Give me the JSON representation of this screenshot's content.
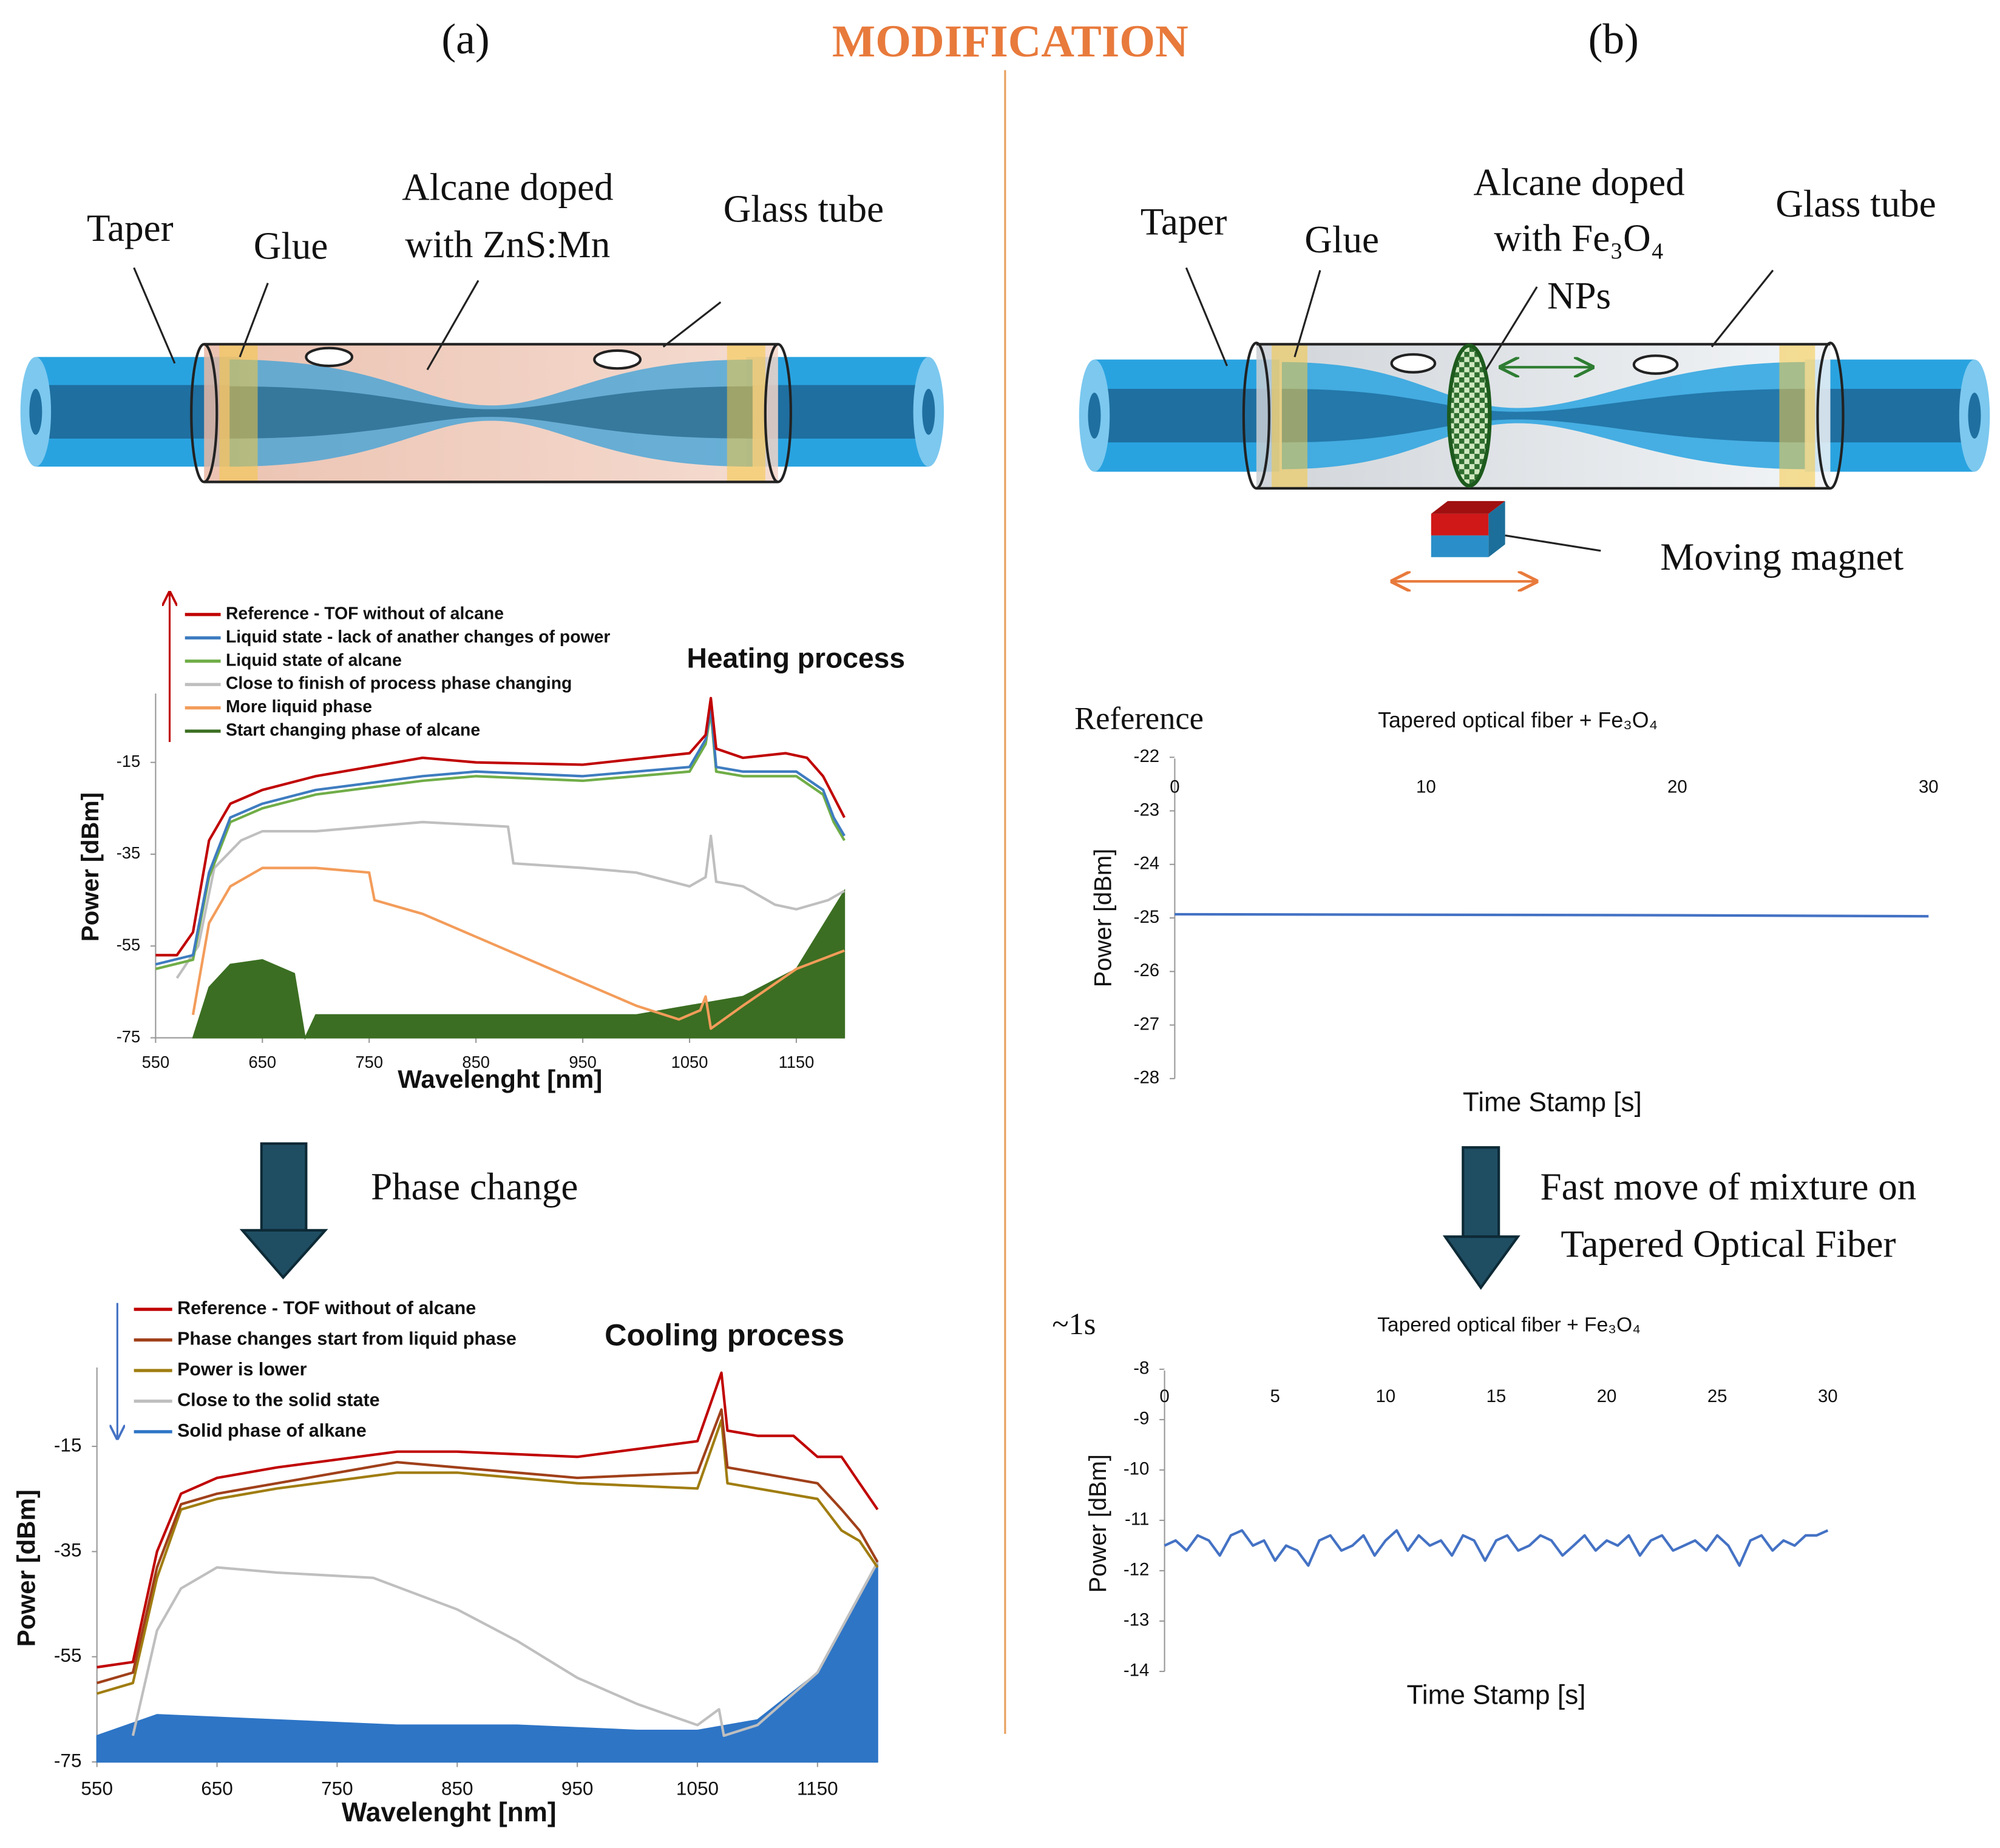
{
  "labels": {
    "panel_a": "(a)",
    "panel_b": "(b)",
    "header": "MODIFICATION",
    "left_diagram": {
      "taper": "Taper",
      "glue": "Glue",
      "alcane": [
        "Alcane doped",
        "with ZnS:Mn"
      ],
      "tube": "Glass tube"
    },
    "right_diagram": {
      "taper": "Taper",
      "glue": "Glue",
      "alcane": [
        "Alcane doped",
        "with Fe₃O₄",
        "NPs"
      ],
      "tube": "Glass tube",
      "magnet": "Moving magnet"
    },
    "phase_change": "Phase change",
    "fast_move": [
      "Fast move of mixture on",
      "Tapered Optical Fiber"
    ],
    "reference": "Reference",
    "one_second": "~1s"
  },
  "chart_data": [
    {
      "type": "line",
      "title": "Heating process",
      "x_label": "Wavelenght [nm]",
      "y_label": "Power [dBm]",
      "xlim": [
        550,
        1195
      ],
      "ylim": [
        -75,
        0
      ],
      "xticks": [
        550,
        650,
        750,
        850,
        950,
        1050,
        1150
      ],
      "yticks": [
        -15,
        -35,
        -55,
        -75
      ],
      "legend": "top-left",
      "series": [
        {
          "name": "Reference - TOF without of alcane",
          "color": "#c00000",
          "x": [
            550,
            570,
            585,
            600,
            620,
            650,
            700,
            800,
            850,
            950,
            1050,
            1065,
            1070,
            1075,
            1100,
            1140,
            1160,
            1175,
            1195
          ],
          "values": [
            -57,
            -57,
            -52,
            -32,
            -24,
            -21,
            -18,
            -14,
            -15,
            -15.5,
            -13,
            -9,
            -1,
            -12,
            -14,
            -13,
            -14,
            -18,
            -27
          ]
        },
        {
          "name": "Liquid state - lack of anather changes of power",
          "color": "#3e7cc0",
          "x": [
            550,
            585,
            600,
            620,
            650,
            700,
            800,
            850,
            950,
            1050,
            1065,
            1070,
            1075,
            1100,
            1150,
            1175,
            1185,
            1195
          ],
          "values": [
            -59,
            -57,
            -39,
            -27,
            -24,
            -21,
            -18,
            -17,
            -18,
            -16,
            -10,
            -3,
            -16,
            -17,
            -17,
            -21,
            -27,
            -31
          ]
        },
        {
          "name": "Liquid state of alcane",
          "color": "#70ad47",
          "x": [
            550,
            585,
            600,
            620,
            650,
            700,
            800,
            850,
            950,
            1050,
            1065,
            1070,
            1075,
            1100,
            1150,
            1175,
            1185,
            1195
          ],
          "values": [
            -60,
            -58,
            -40,
            -28,
            -25,
            -22,
            -19,
            -18,
            -19,
            -17,
            -11,
            -4,
            -17,
            -18,
            -18,
            -22,
            -28,
            -32
          ]
        },
        {
          "name": "Close to finish of process phase changing",
          "color": "#bfbfbf",
          "x": [
            570,
            590,
            605,
            630,
            650,
            700,
            800,
            880,
            885,
            950,
            1000,
            1050,
            1065,
            1070,
            1075,
            1100,
            1130,
            1150,
            1180,
            1195
          ],
          "values": [
            -62,
            -55,
            -38,
            -32,
            -30,
            -30,
            -28,
            -29,
            -37,
            -38,
            -39,
            -42,
            -40,
            -31,
            -41,
            -42,
            -46,
            -47,
            -45,
            -43
          ]
        },
        {
          "name": "More liquid phase",
          "color": "#f39c5a",
          "x": [
            585,
            600,
            620,
            650,
            700,
            750,
            755,
            800,
            850,
            900,
            950,
            1000,
            1040,
            1060,
            1065,
            1070,
            1100,
            1150,
            1195
          ],
          "values": [
            -70,
            -50,
            -42,
            -38,
            -38,
            -39,
            -45,
            -48,
            -53,
            -58,
            -63,
            -68,
            -71,
            -69,
            -66,
            -73,
            -68,
            -60,
            -56
          ]
        },
        {
          "name": "Start changing phase of alcane",
          "color": "#3b6e22",
          "style": "area",
          "x": [
            585,
            600,
            620,
            650,
            680,
            690,
            700,
            800,
            900,
            1000,
            1100,
            1150,
            1195
          ],
          "values": [
            -75,
            -64,
            -59,
            -58,
            -61,
            -75,
            -70,
            -70,
            -70,
            -70,
            -66,
            -60,
            -43
          ]
        }
      ]
    },
    {
      "type": "line",
      "title": "Cooling process",
      "x_label": "Wavelenght [nm]",
      "y_label": "Power [dBm]",
      "xlim": [
        550,
        1200
      ],
      "ylim": [
        -75,
        0
      ],
      "xticks": [
        550,
        650,
        750,
        850,
        950,
        1050,
        1150
      ],
      "yticks": [
        -15,
        -35,
        -55,
        -75
      ],
      "legend": "top-left",
      "series": [
        {
          "name": "Reference - TOF without of alcane",
          "color": "#c00000",
          "x": [
            550,
            580,
            600,
            620,
            650,
            700,
            800,
            850,
            950,
            1050,
            1070,
            1075,
            1100,
            1130,
            1150,
            1170,
            1185,
            1200
          ],
          "values": [
            -57,
            -56,
            -35,
            -24,
            -21,
            -19,
            -16,
            -16,
            -17,
            -14,
            -1,
            -12,
            -13,
            -13,
            -17,
            -17,
            -22,
            -27
          ]
        },
        {
          "name": "Phase changes start from liquid phase",
          "color": "#a0401a",
          "x": [
            550,
            580,
            600,
            620,
            650,
            700,
            800,
            850,
            950,
            1050,
            1070,
            1075,
            1100,
            1150,
            1170,
            1185,
            1200
          ],
          "values": [
            -60,
            -58,
            -38,
            -26,
            -24,
            -22,
            -18,
            -19,
            -21,
            -20,
            -8,
            -19,
            -20,
            -22,
            -27,
            -31,
            -37
          ]
        },
        {
          "name": "Power is lower",
          "color": "#a07d10",
          "x": [
            550,
            580,
            600,
            620,
            650,
            700,
            800,
            850,
            950,
            1050,
            1070,
            1075,
            1100,
            1150,
            1170,
            1185,
            1200
          ],
          "values": [
            -62,
            -60,
            -40,
            -27,
            -25,
            -23,
            -20,
            -20,
            -22,
            -23,
            -10,
            -22,
            -23,
            -25,
            -31,
            -33,
            -38
          ]
        },
        {
          "name": "Close to the solid state",
          "color": "#bfbfbf",
          "x": [
            580,
            600,
            620,
            650,
            700,
            780,
            850,
            900,
            950,
            1000,
            1050,
            1068,
            1072,
            1100,
            1150,
            1200
          ],
          "values": [
            -70,
            -50,
            -42,
            -38,
            -39,
            -40,
            -46,
            -52,
            -59,
            -64,
            -68,
            -65,
            -70,
            -68,
            -58,
            -37
          ]
        },
        {
          "name": "Solid phase of alkane",
          "color": "#2e75c6",
          "style": "area",
          "x": [
            550,
            600,
            700,
            800,
            900,
            1000,
            1050,
            1100,
            1150,
            1200
          ],
          "values": [
            -70,
            -66,
            -67,
            -68,
            -68,
            -69,
            -69,
            -67,
            -58,
            -37
          ]
        }
      ]
    },
    {
      "type": "line",
      "title": "Tapered optical fiber + Fe₃O₄",
      "x_label": "Time Stamp [s]",
      "y_label": "Power [dBm]",
      "xlim": [
        0,
        30
      ],
      "ylim": [
        -28,
        -22
      ],
      "xticks": [
        0,
        10,
        20,
        30
      ],
      "yticks": [
        -22,
        -23,
        -24,
        -25,
        -26,
        -27,
        -28
      ],
      "series": [
        {
          "color": "#4472c4",
          "x": [
            0,
            10,
            20,
            30
          ],
          "values": [
            -24.93,
            -24.94,
            -24.95,
            -24.97
          ]
        }
      ]
    },
    {
      "type": "line",
      "title": "Tapered optical fiber + Fe₃O₄",
      "x_label": "Time Stamp [s]",
      "y_label": "Power [dBm]",
      "xlim": [
        0,
        30
      ],
      "ylim": [
        -14,
        -8
      ],
      "xticks": [
        0,
        5,
        10,
        15,
        20,
        25,
        30
      ],
      "yticks": [
        -8,
        -9,
        -10,
        -11,
        -12,
        -13,
        -14
      ],
      "series": [
        {
          "color": "#4472c4",
          "x": [
            0,
            0.5,
            1,
            1.5,
            2,
            2.5,
            3,
            3.5,
            4,
            4.5,
            5,
            5.5,
            6,
            6.5,
            7,
            7.5,
            8,
            8.5,
            9,
            9.5,
            10,
            10.5,
            11,
            11.5,
            12,
            12.5,
            13,
            13.5,
            14,
            14.5,
            15,
            15.5,
            16,
            16.5,
            17,
            17.5,
            18,
            18.5,
            19,
            19.5,
            20,
            20.5,
            21,
            21.5,
            22,
            22.5,
            23,
            23.5,
            24,
            24.5,
            25,
            25.5,
            26,
            26.5,
            27,
            27.5,
            28,
            28.5,
            29,
            29.5,
            30
          ],
          "values": [
            -11.5,
            -11.4,
            -11.6,
            -11.3,
            -11.4,
            -11.7,
            -11.3,
            -11.2,
            -11.5,
            -11.4,
            -11.8,
            -11.5,
            -11.6,
            -11.9,
            -11.4,
            -11.3,
            -11.6,
            -11.5,
            -11.3,
            -11.7,
            -11.4,
            -11.2,
            -11.6,
            -11.3,
            -11.5,
            -11.4,
            -11.7,
            -11.3,
            -11.4,
            -11.8,
            -11.4,
            -11.3,
            -11.6,
            -11.5,
            -11.3,
            -11.4,
            -11.7,
            -11.5,
            -11.3,
            -11.6,
            -11.4,
            -11.5,
            -11.3,
            -11.7,
            -11.4,
            -11.3,
            -11.6,
            -11.5,
            -11.4,
            -11.6,
            -11.3,
            -11.5,
            -11.9,
            -11.4,
            -11.3,
            -11.6,
            -11.4,
            -11.5,
            -11.3,
            -11.3,
            -11.2
          ]
        }
      ]
    }
  ]
}
